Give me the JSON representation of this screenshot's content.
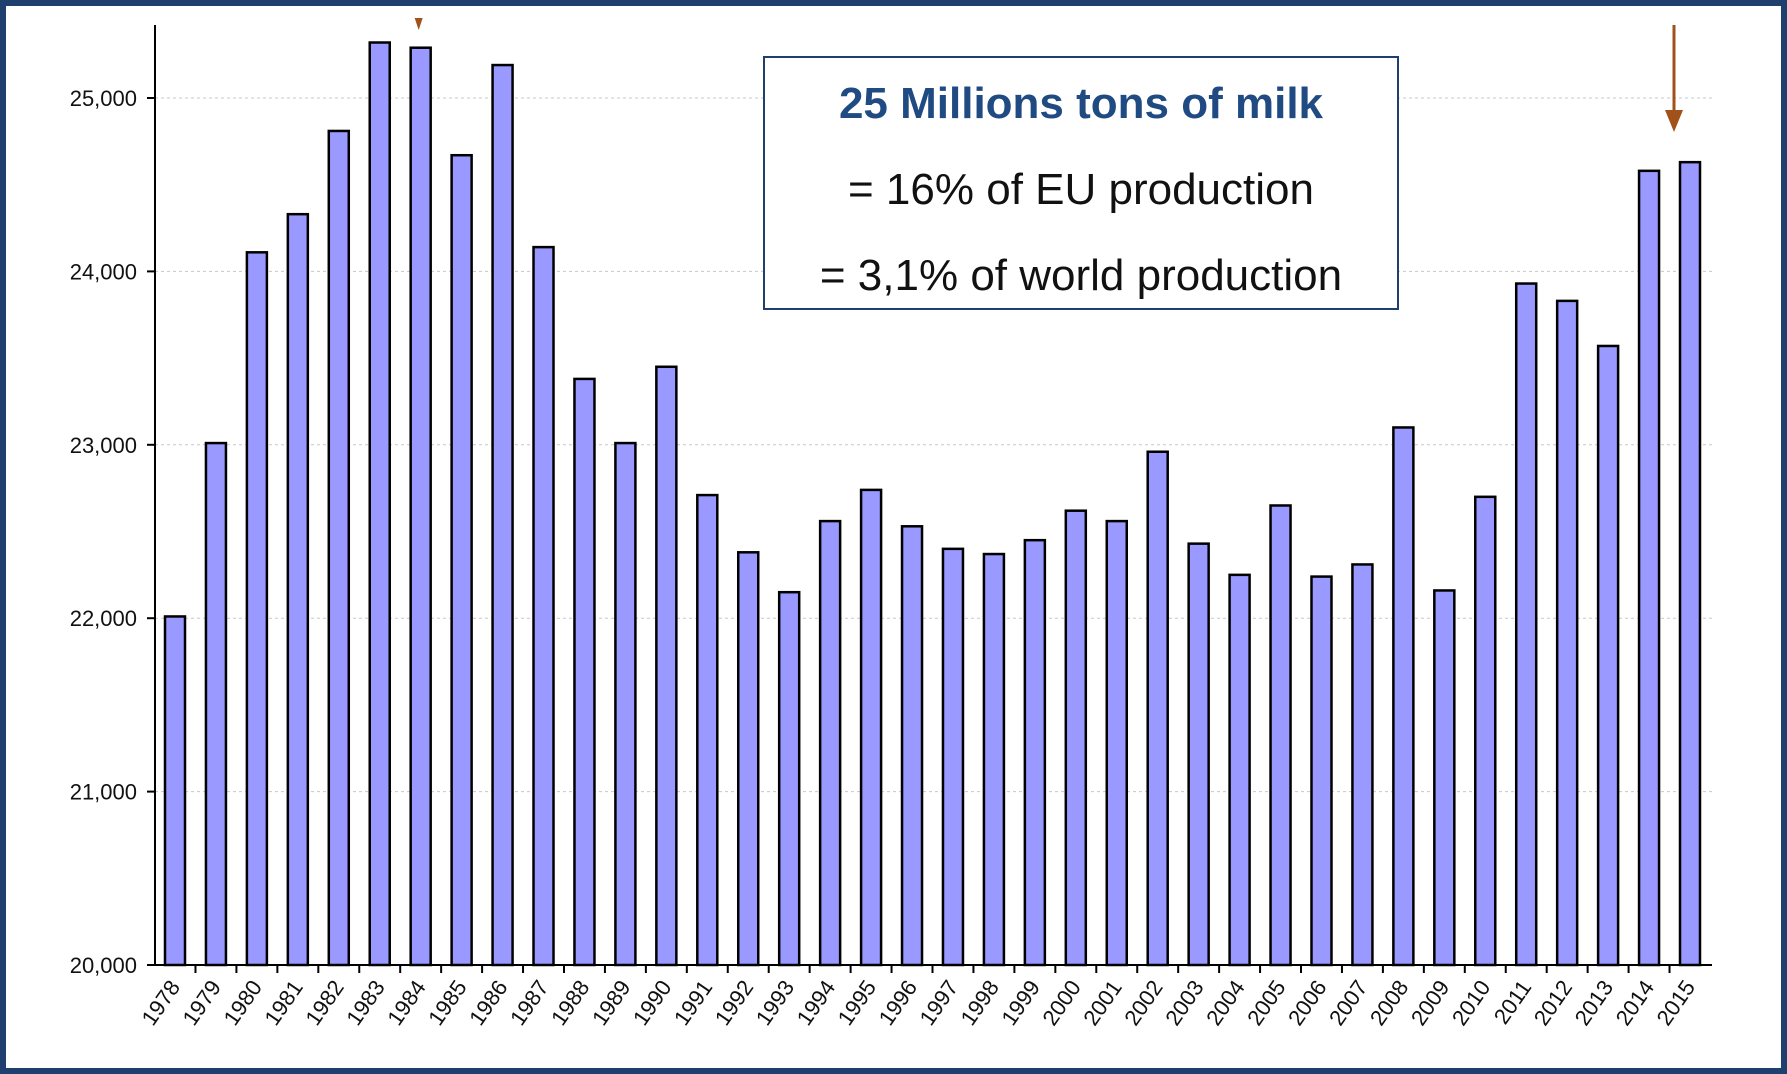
{
  "info_box": {
    "title": "25 Millions tons of milk",
    "line1": "= 16% of EU production",
    "line2": "= 3,1% of world production",
    "title_color": "#1f4a82",
    "border_color": "#1f3f6e"
  },
  "colors": {
    "bar_fill": "#9999ff",
    "bar_stroke": "#000000",
    "frame": "#1f3f6e",
    "arrow": "#a0521a"
  },
  "chart_data": {
    "type": "bar",
    "title": "",
    "xlabel": "",
    "ylabel": "",
    "ylim": [
      20000,
      25400
    ],
    "yticks": [
      20000,
      21000,
      22000,
      23000,
      24000,
      25000
    ],
    "ytick_labels": [
      "20,000",
      "21,000",
      "22,000",
      "23,000",
      "24,000",
      "25,000"
    ],
    "grid": true,
    "categories": [
      "1978",
      "1979",
      "1980",
      "1981",
      "1982",
      "1983",
      "1984",
      "1985",
      "1986",
      "1987",
      "1988",
      "1989",
      "1990",
      "1991",
      "1992",
      "1993",
      "1994",
      "1995",
      "1996",
      "1997",
      "1998",
      "1999",
      "2000",
      "2001",
      "2002",
      "2003",
      "2004",
      "2005",
      "2006",
      "2007",
      "2008",
      "2009",
      "2010",
      "2011",
      "2012",
      "2013",
      "2014",
      "2015"
    ],
    "values": [
      22010,
      23010,
      24110,
      24330,
      24810,
      25320,
      25290,
      24670,
      25190,
      24140,
      23380,
      23010,
      23450,
      22710,
      22380,
      22150,
      22560,
      22740,
      22530,
      22400,
      22370,
      22450,
      22620,
      22560,
      22960,
      22430,
      22250,
      22650,
      22240,
      22310,
      23100,
      22160,
      22700,
      23930,
      23830,
      23570,
      24580,
      24630
    ],
    "annotations": [
      {
        "type": "arrow",
        "at_category": "1984",
        "direction": "down"
      },
      {
        "type": "arrow",
        "at_category": "2015",
        "direction": "down"
      }
    ]
  }
}
